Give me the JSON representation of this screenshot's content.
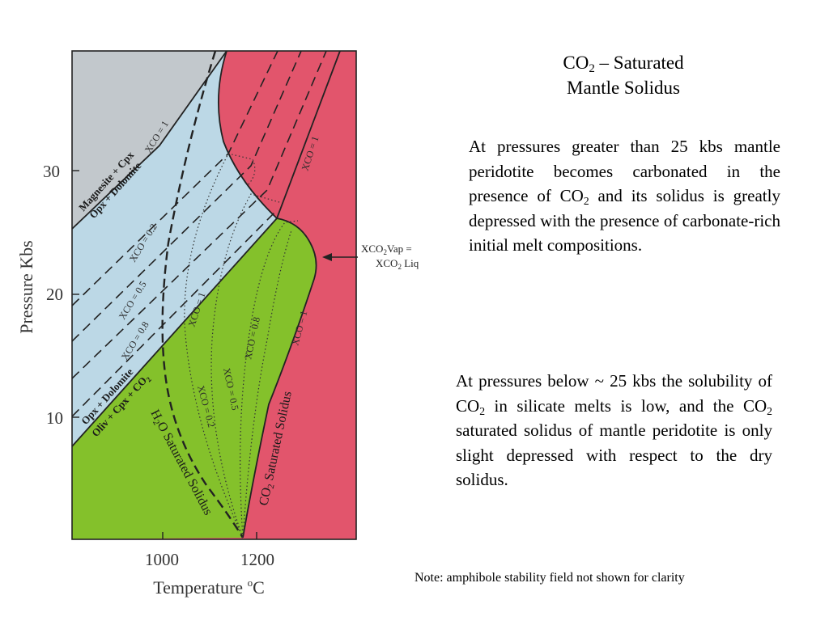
{
  "title": {
    "line1_pre": "CO",
    "line1_sub": "2",
    "line1_post": " – Saturated",
    "line2": "Mantle Solidus"
  },
  "paragraph1": {
    "pre": "At pressures greater than 25 kbs mantle peridotite becomes carbonated in the presence of CO",
    "sub": "2",
    "post": " and its solidus is greatly depressed with the presence of carbonate-rich initial melt compositions."
  },
  "paragraph2": {
    "pre": "At pressures below ~ 25 kbs the solubility of CO",
    "sub1": "2",
    "mid": " in silicate melts is low, and the CO",
    "sub2": "2",
    "post": " saturated solidus of mantle peridotite is only slight depressed with respect to the dry solidus."
  },
  "note": "Note:  amphibole stability field not shown for clarity",
  "diagram": {
    "y_axis_label": "Pressure Kbs",
    "x_axis_label_pre": "Temperature ",
    "x_axis_label_sup": "o",
    "x_axis_label_post": "C",
    "y_ticks": [
      "30",
      "20",
      "10"
    ],
    "x_ticks": [
      "1000",
      "1200"
    ],
    "field_labels": {
      "magnesite_cpx": "Magnesite + Cpx",
      "opx_dolomite_upper": "Opx + Dolomite",
      "opx_dolomite_lower": "Opx + Dolomite",
      "oliv_cpx_co2": "Oliv + Cpx + CO",
      "co2_sub": "2"
    },
    "contour_labels": {
      "xco2_1_upper": "XCO = 1",
      "xco2_02": "XCO = 0.2",
      "xco2_05": "XCO = 0.5",
      "xco2_08": "XCO = 0.8",
      "xco2_1_right": "XCO = 1",
      "xco2_1_mid": "XCO = 1",
      "xco2_05_low": "XCO = 0.5",
      "xco2_02_low": "XCO = 0.2",
      "xco2_08_low": "XCO = 0.8",
      "xco2_1_lowright": "XCO = 1",
      "sub": "2"
    },
    "solidus_labels": {
      "h2o_pre": "H",
      "h2o_sub": "2",
      "h2o_post": "O Saturated Solidus",
      "co2_pre": "CO",
      "co2_sub": "2",
      "co2_post": " Saturated Solidus"
    },
    "annotation": {
      "line1_pre": "XCO",
      "line1_sub": "2",
      "line1_post": "Vap =",
      "line2_pre": "XCO",
      "line2_sub": "2",
      "line2_post": " Liq"
    },
    "colors": {
      "melt_field": "#e2556c",
      "carbonated_field": "#bcd8e6",
      "magnesite_field": "#c2c8cc",
      "olivine_field": "#84c12b"
    }
  }
}
